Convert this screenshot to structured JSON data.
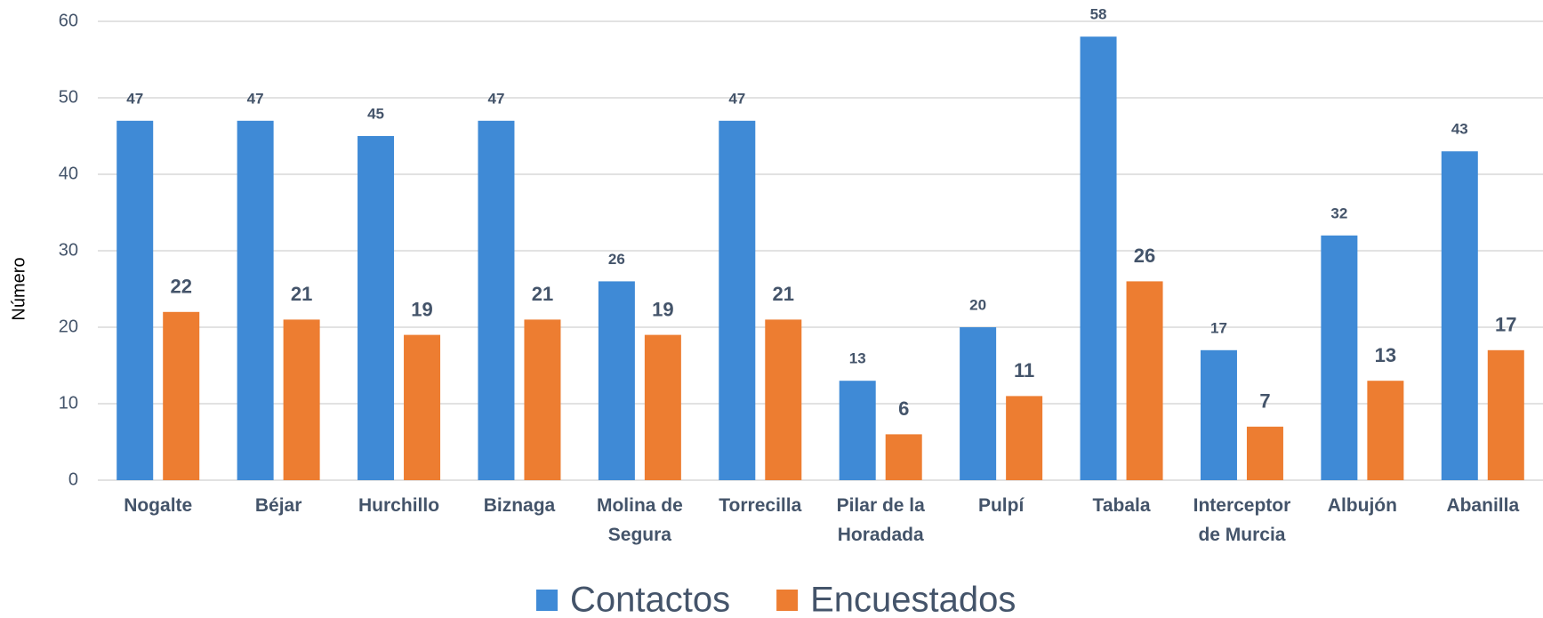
{
  "chart_data": {
    "type": "bar",
    "y_label": "Número",
    "categories": [
      "Nogalte",
      "Béjar",
      "Hurchillo",
      "Biznaga",
      "Molina de Segura",
      "Torrecilla",
      "Pilar de la Horadada",
      "Pulpí",
      "Tabala",
      "Interceptor de Murcia",
      "Albujón",
      "Abanilla"
    ],
    "series": [
      {
        "name": "Contactos",
        "color": "#3f8ad6",
        "values": [
          47,
          47,
          45,
          47,
          26,
          47,
          13,
          20,
          58,
          17,
          32,
          43
        ]
      },
      {
        "name": "Encuestados",
        "color": "#ed7d31",
        "values": [
          22,
          21,
          19,
          21,
          19,
          21,
          6,
          11,
          26,
          7,
          13,
          17
        ]
      }
    ],
    "ylim": [
      0,
      60
    ],
    "yticks": [
      0,
      10,
      20,
      30,
      40,
      50,
      60
    ],
    "grid": true,
    "legend": "bottom"
  }
}
